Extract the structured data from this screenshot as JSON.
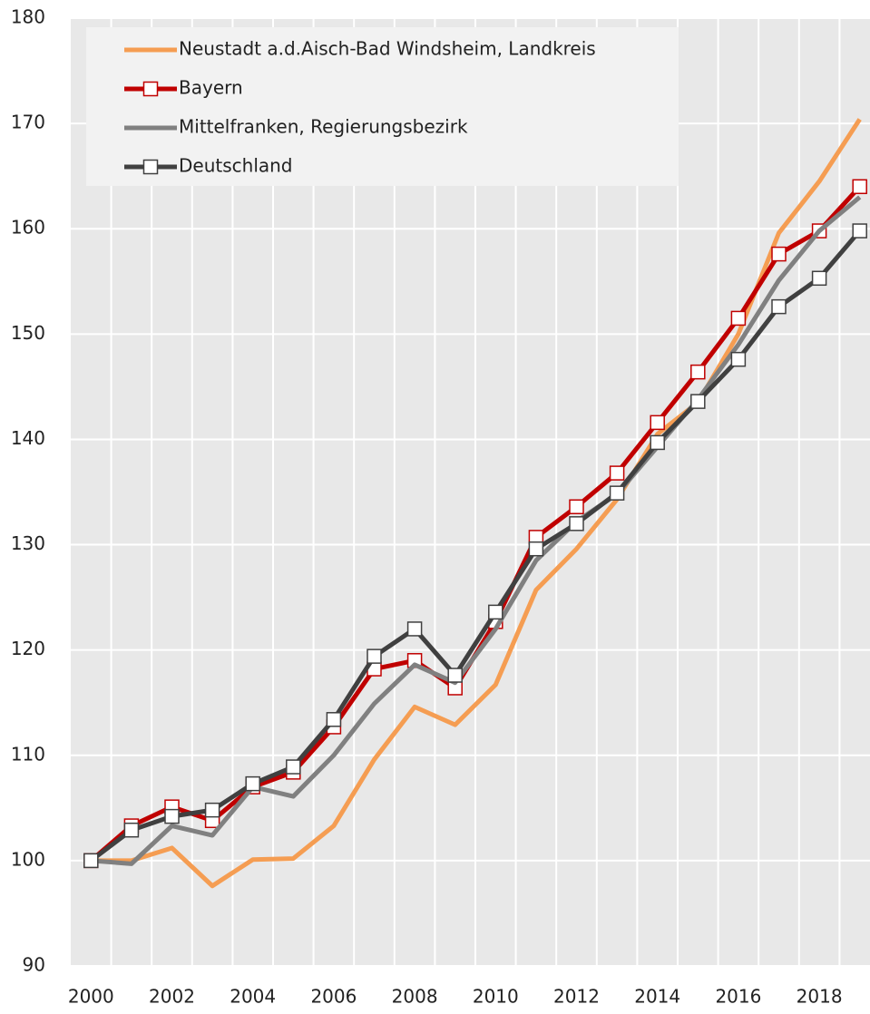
{
  "chart_data": {
    "type": "line",
    "categories": [
      "2000",
      null,
      "2002",
      null,
      "2004",
      null,
      "2006",
      null,
      "2008",
      null,
      "2010",
      null,
      "2012",
      null,
      "2014",
      null,
      "2016",
      null,
      "2018",
      null
    ],
    "series": [
      {
        "name": "Neustadt a.d.Aisch-Bad Windsheim, Landkreis",
        "color": "#f59d52",
        "marker": "none",
        "values": [
          100,
          100,
          101.2,
          97.6,
          100.1,
          100.2,
          103.3,
          109.6,
          114.6,
          112.9,
          116.7,
          125.7,
          129.6,
          134.3,
          140.5,
          143.5,
          150.0,
          159.6,
          164.5,
          170.4
        ]
      },
      {
        "name": "Bayern",
        "color": "#c00000",
        "marker": "square",
        "values": [
          100,
          103.3,
          105.1,
          103.8,
          107.0,
          108.4,
          112.7,
          118.2,
          119.0,
          116.4,
          122.7,
          130.7,
          133.6,
          136.8,
          141.6,
          146.4,
          151.5,
          157.6,
          159.8,
          164.0
        ]
      },
      {
        "name": "Mittelfranken, Regierungsbezirk",
        "color": "#808080",
        "marker": "none",
        "values": [
          100,
          99.7,
          103.3,
          102.4,
          107.0,
          106.1,
          110.0,
          114.9,
          118.6,
          116.9,
          122.0,
          128.5,
          132.2,
          134.8,
          139.3,
          143.8,
          149.0,
          155.1,
          159.8,
          163.0
        ]
      },
      {
        "name": "Deutschland",
        "color": "#404040",
        "marker": "square",
        "values": [
          100,
          102.9,
          104.2,
          104.8,
          107.3,
          108.9,
          113.4,
          119.4,
          122.0,
          117.6,
          123.6,
          129.6,
          132.0,
          134.9,
          139.7,
          143.6,
          147.6,
          152.6,
          155.3,
          159.8
        ]
      }
    ],
    "ylim": [
      90,
      180
    ],
    "yticks": [
      90,
      100,
      110,
      120,
      130,
      140,
      150,
      160,
      170,
      180
    ],
    "grid": true,
    "legend": "top-left"
  }
}
